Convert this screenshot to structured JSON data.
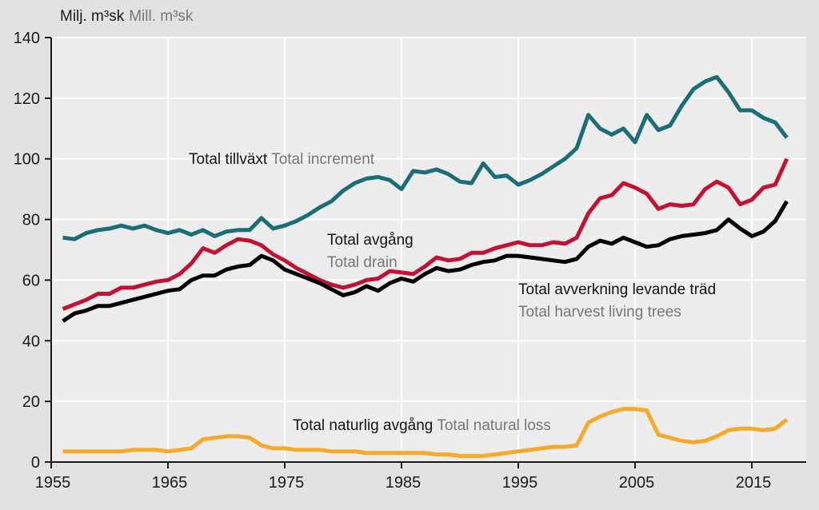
{
  "page": {
    "background": "#e2e2e2",
    "plot_background": "#ededed",
    "gridline_color": "#ffffff",
    "axis_color": "#1a1a1a",
    "text_color": "#1a1a1a",
    "secondary_text_color": "#76777a"
  },
  "header": {
    "unit_label_sv": "Milj. m³sk",
    "unit_label_en": "Mill. m³sk"
  },
  "chart_data": {
    "type": "line",
    "title_sv": "Milj. m³sk",
    "title_en": "Mill. m³sk",
    "xlabel": "",
    "ylabel_sv": "Milj. m³sk",
    "ylabel_en": "Mill. m³sk",
    "xlim": [
      1955,
      2019.6
    ],
    "ylim": [
      0,
      140
    ],
    "x_ticks": [
      1955,
      1965,
      1975,
      1985,
      1995,
      2005,
      2015
    ],
    "y_ticks": [
      0,
      20,
      40,
      60,
      80,
      100,
      120,
      140
    ],
    "grid": "white gridlines on light grey plot area, vertical at decade ticks (except 1955), horizontal at every 20 units",
    "legend_position": "labels placed inline next to lines inside plot",
    "x_years": [
      1956,
      1957,
      1958,
      1959,
      1960,
      1961,
      1962,
      1963,
      1964,
      1965,
      1966,
      1967,
      1968,
      1969,
      1970,
      1971,
      1972,
      1973,
      1974,
      1975,
      1976,
      1977,
      1978,
      1979,
      1980,
      1981,
      1982,
      1983,
      1984,
      1985,
      1986,
      1987,
      1988,
      1989,
      1990,
      1991,
      1992,
      1993,
      1994,
      1995,
      1996,
      1997,
      1998,
      1999,
      2000,
      2001,
      2002,
      2003,
      2004,
      2005,
      2006,
      2007,
      2008,
      2009,
      2010,
      2011,
      2012,
      2013,
      2014,
      2015,
      2016,
      2017,
      2018
    ],
    "series": [
      {
        "id": "total-increment",
        "label_sv": "Total tillväxt",
        "label_en": "Total increment",
        "color": "#1a6e78",
        "values": [
          74,
          73.5,
          75.5,
          76.5,
          77,
          78,
          77,
          78,
          76.5,
          75.5,
          76.5,
          75,
          76.5,
          74.5,
          76,
          76.5,
          76.5,
          80.5,
          77,
          78,
          79.5,
          81.5,
          84,
          86,
          89.5,
          92,
          93.5,
          94,
          93,
          90,
          96,
          95.5,
          96.5,
          95,
          92.5,
          92,
          98.5,
          94,
          94.5,
          91.5,
          93,
          95,
          97.5,
          100,
          103.5,
          114.5,
          110,
          108,
          110,
          105.5,
          114.5,
          109.5,
          111,
          117.5,
          123,
          125.5,
          127,
          122,
          116,
          116,
          113.5,
          112,
          107
        ]
      },
      {
        "id": "total-drain",
        "label_sv": "Total avgång",
        "label_en": "Total drain",
        "color": "#c11236",
        "values": [
          50.5,
          52,
          53.5,
          55.5,
          55.5,
          57.5,
          57.5,
          58.5,
          59.5,
          60,
          62,
          65.5,
          70.5,
          69,
          71.5,
          73.5,
          73,
          71.5,
          68.5,
          66.5,
          64,
          62,
          60,
          58.5,
          57.5,
          58.5,
          60,
          60.5,
          63,
          62.5,
          62,
          64.5,
          67.5,
          66.5,
          67,
          69,
          69,
          70.5,
          71.5,
          72.5,
          71.5,
          71.5,
          72.5,
          72,
          74,
          82,
          87,
          88,
          92,
          90.5,
          88.5,
          83.5,
          85,
          84.5,
          85,
          90,
          92.5,
          90.5,
          85,
          86.5,
          90.5,
          91.5,
          100
        ]
      },
      {
        "id": "total-harvest-living-trees",
        "label_sv": "Total avverkning levande träd",
        "label_en": "Total harvest living trees",
        "color": "#000000",
        "values": [
          46.5,
          49,
          50,
          51.5,
          51.5,
          52.5,
          53.5,
          54.5,
          55.5,
          56.5,
          57,
          60,
          61.5,
          61.5,
          63.5,
          64.5,
          65,
          68,
          66.5,
          63.5,
          62,
          60.5,
          59,
          57,
          55,
          56,
          58,
          56.5,
          59,
          60.5,
          59.5,
          62,
          64,
          63,
          63.5,
          65,
          66,
          66.5,
          68,
          68,
          67.5,
          67,
          66.5,
          66,
          67,
          71,
          73,
          72,
          74,
          72.5,
          71,
          71.5,
          73.5,
          74.5,
          75,
          75.5,
          76.5,
          80,
          77,
          74.5,
          76,
          79.5,
          86
        ]
      },
      {
        "id": "total-natural-loss",
        "label_sv": "Total naturlig avgång",
        "label_en": "Total natural loss",
        "color": "#f7a929",
        "values": [
          3.5,
          3.5,
          3.5,
          3.5,
          3.5,
          3.5,
          4,
          4,
          4,
          3.5,
          4,
          4.5,
          7.5,
          8,
          8.5,
          8.5,
          8,
          5.5,
          4.5,
          4.5,
          4,
          4,
          4,
          3.5,
          3.5,
          3.5,
          3,
          3,
          3,
          3,
          3,
          3,
          2.5,
          2.5,
          2,
          2,
          2,
          2.5,
          3,
          3.5,
          4,
          4.5,
          5,
          5,
          5.5,
          13,
          15,
          16.5,
          17.5,
          17.5,
          17,
          9,
          8,
          7,
          6.5,
          7,
          8.5,
          10.5,
          11,
          11,
          10.5,
          11,
          14
        ]
      }
    ]
  }
}
